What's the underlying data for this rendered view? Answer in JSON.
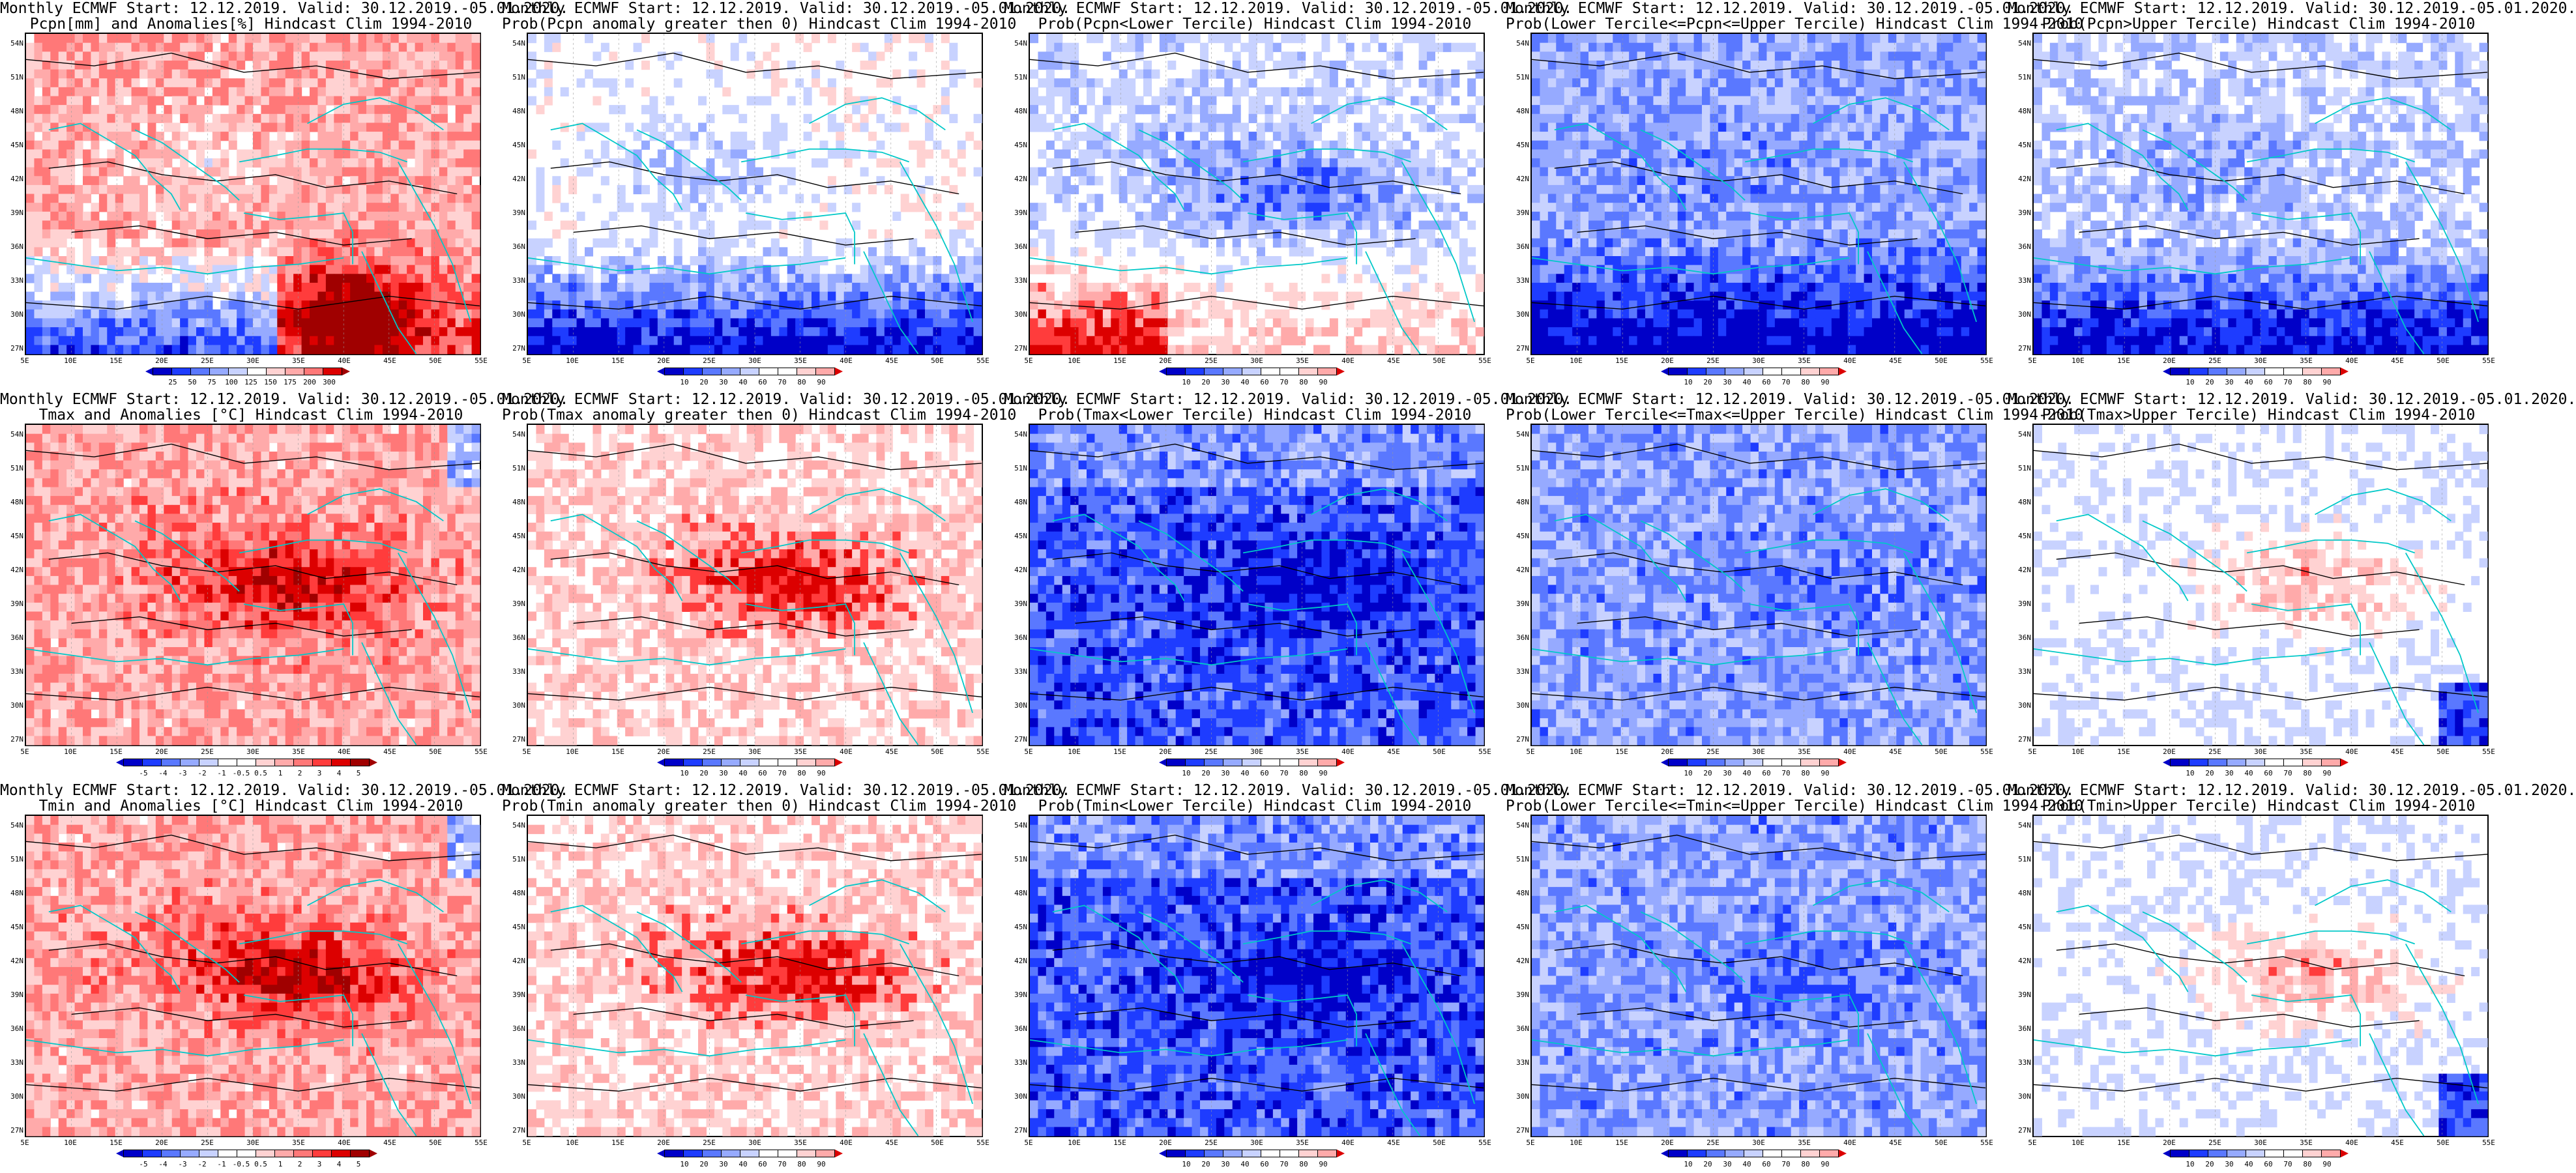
{
  "panels": [
    {
      "line1": "Monthly ECMWF Start: 12.12.2019. Valid: 30.12.2019.-05.01.2020.",
      "line2": "Pcpn[mm] and Anomalies[%] Hindcast Clim 1994-2010",
      "scale": "precip_anom",
      "variant": "pcp_anom",
      "ticks": [
        "25",
        "50",
        "75",
        "100",
        "125",
        "150",
        "175",
        "200",
        "300"
      ]
    },
    {
      "line1": "Monthly ECMWF Start: 12.12.2019. Valid: 30.12.2019.-05.01.2020.",
      "line2": "Prob(Pcpn anomaly greater then 0) Hindcast Clim 1994-2010",
      "scale": "prob",
      "variant": "pcp_pos",
      "ticks": [
        "10",
        "20",
        "30",
        "40",
        "60",
        "70",
        "80",
        "90"
      ]
    },
    {
      "line1": "Monthly ECMWF Start: 12.12.2019. Valid: 30.12.2019.-05.01.2020.",
      "line2": "Prob(Pcpn<Lower Tercile) Hindcast Clim 1994-2010",
      "scale": "prob",
      "variant": "pcp_low",
      "ticks": [
        "10",
        "20",
        "30",
        "40",
        "60",
        "70",
        "80",
        "90"
      ]
    },
    {
      "line1": "Monthly ECMWF Start: 12.12.2019. Valid: 30.12.2019.-05.01.2020.",
      "line2": "Prob(Lower Tercile<=Pcpn<=Upper Tercile) Hindcast Clim 1994-2010",
      "scale": "prob",
      "variant": "pcp_mid",
      "ticks": [
        "10",
        "20",
        "30",
        "40",
        "60",
        "70",
        "80",
        "90"
      ]
    },
    {
      "line1": "Monthly ECMWF Start: 12.12.2019. Valid: 30.12.2019.-05.01.2020.",
      "line2": "Prob(Pcpn>Upper Tercile) Hindcast Clim 1994-2010",
      "scale": "prob",
      "variant": "pcp_up",
      "ticks": [
        "10",
        "20",
        "30",
        "40",
        "60",
        "70",
        "80",
        "90"
      ]
    },
    {
      "line1": "Monthly ECMWF Start: 12.12.2019. Valid: 30.12.2019.-05.01.2020.",
      "line2": "Tmax and Anomalies [°C] Hindcast Clim 1994-2010",
      "scale": "temp_anom",
      "variant": "t_anom",
      "ticks": [
        "-5",
        "-4",
        "-3",
        "-2",
        "-1",
        "-0.5",
        "0.5",
        "1",
        "2",
        "3",
        "4",
        "5"
      ]
    },
    {
      "line1": "Monthly ECMWF Start: 12.12.2019. Valid: 30.12.2019.-05.01.2020.",
      "line2": "Prob(Tmax anomaly greater then 0) Hindcast Clim 1994-2010",
      "scale": "prob",
      "variant": "t_pos",
      "ticks": [
        "10",
        "20",
        "30",
        "40",
        "60",
        "70",
        "80",
        "90"
      ]
    },
    {
      "line1": "Monthly ECMWF Start: 12.12.2019. Valid: 30.12.2019.-05.01.2020.",
      "line2": "Prob(Tmax<Lower Tercile) Hindcast Clim 1994-2010",
      "scale": "prob",
      "variant": "t_low",
      "ticks": [
        "10",
        "20",
        "30",
        "40",
        "60",
        "70",
        "80",
        "90"
      ]
    },
    {
      "line1": "Monthly ECMWF Start: 12.12.2019. Valid: 30.12.2019.-05.01.2020.",
      "line2": "Prob(Lower Tercile<=Tmax<=Upper Tercile) Hindcast Clim 1994-2010",
      "scale": "prob",
      "variant": "t_mid",
      "ticks": [
        "10",
        "20",
        "30",
        "40",
        "60",
        "70",
        "80",
        "90"
      ]
    },
    {
      "line1": "Monthly ECMWF Start: 12.12.2019. Valid: 30.12.2019.-05.01.2020.",
      "line2": "Prob(Tmax>Upper Tercile) Hindcast Clim 1994-2010",
      "scale": "prob",
      "variant": "t_up",
      "ticks": [
        "10",
        "20",
        "30",
        "40",
        "60",
        "70",
        "80",
        "90"
      ]
    },
    {
      "line1": "Monthly ECMWF Start: 12.12.2019. Valid: 30.12.2019.-05.01.2020.",
      "line2": "Tmin and Anomalies [°C] Hindcast Clim 1994-2010",
      "scale": "temp_anom",
      "variant": "t_anom",
      "ticks": [
        "-5",
        "-4",
        "-3",
        "-2",
        "-1",
        "-0.5",
        "0.5",
        "1",
        "2",
        "3",
        "4",
        "5"
      ]
    },
    {
      "line1": "Monthly ECMWF Start: 12.12.2019. Valid: 30.12.2019.-05.01.2020.",
      "line2": "Prob(Tmin anomaly greater then 0) Hindcast Clim 1994-2010",
      "scale": "prob",
      "variant": "t_pos",
      "ticks": [
        "10",
        "20",
        "30",
        "40",
        "60",
        "70",
        "80",
        "90"
      ]
    },
    {
      "line1": "Monthly ECMWF Start: 12.12.2019. Valid: 30.12.2019.-05.01.2020.",
      "line2": "Prob(Tmin<Lower Tercile) Hindcast Clim 1994-2010",
      "scale": "prob",
      "variant": "t_low",
      "ticks": [
        "10",
        "20",
        "30",
        "40",
        "60",
        "70",
        "80",
        "90"
      ]
    },
    {
      "line1": "Monthly ECMWF Start: 12.12.2019. Valid: 30.12.2019.-05.01.2020.",
      "line2": "Prob(Lower Tercile<=Tmin<=Upper Tercile) Hindcast Clim 1994-2010",
      "scale": "prob",
      "variant": "t_mid",
      "ticks": [
        "10",
        "20",
        "30",
        "40",
        "60",
        "70",
        "80",
        "90"
      ]
    },
    {
      "line1": "Monthly ECMWF Start: 12.12.2019. Valid: 30.12.2019.-05.01.2020.",
      "line2": "Prob(Tmin>Upper Tercile) Hindcast Clim 1994-2010",
      "scale": "prob",
      "variant": "t_up",
      "ticks": [
        "10",
        "20",
        "30",
        "40",
        "60",
        "70",
        "80",
        "90"
      ]
    }
  ],
  "lat_labels": [
    "54N",
    "51N",
    "48N",
    "45N",
    "42N",
    "39N",
    "36N",
    "33N",
    "30N",
    "27N"
  ],
  "lon_labels": [
    "5E",
    "10E",
    "15E",
    "20E",
    "25E",
    "30E",
    "35E",
    "40E",
    "45E",
    "50E",
    "55E"
  ],
  "colors": {
    "blues": [
      "#0000c8",
      "#1e3cff",
      "#5a78ff",
      "#96aaff",
      "#c8d2ff"
    ],
    "reds": [
      "#ffd2d2",
      "#ffaaaa",
      "#ff7878",
      "#ff3c3c",
      "#dc0000",
      "#a00000"
    ],
    "white": "#ffffff",
    "coast": "#00c8c8",
    "contour": "#000000"
  }
}
